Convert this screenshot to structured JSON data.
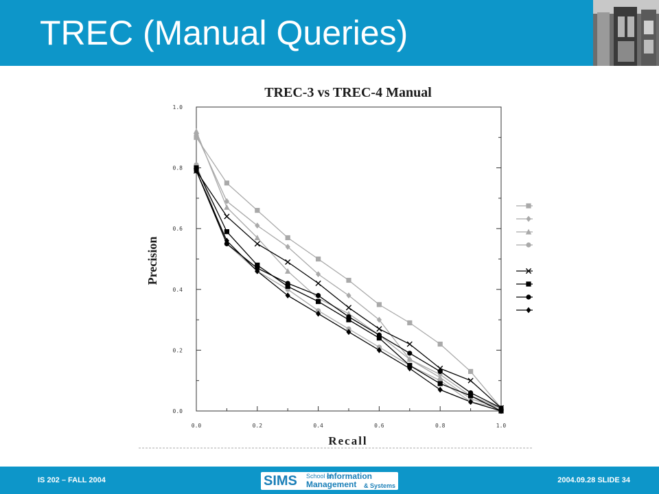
{
  "slide": {
    "title": "TREC (Manual Queries)",
    "footer_left": "IS 202 – FALL 2004",
    "footer_right": "2004.09.28  SLIDE 34",
    "logo": {
      "word": "SIMS",
      "line1_a": "School of",
      "line1_b": "Information",
      "line2_a": "Management",
      "line2_b": "& Systems"
    },
    "colors": {
      "header_bg": "#0d96c9",
      "footer_bg": "#0d96c9",
      "title_text": "#ffffff",
      "gray_series": "#a9a9a9",
      "black_series": "#000000"
    }
  },
  "chart_data": {
    "type": "line",
    "title": "TREC-3 vs TREC-4 Manual",
    "xlabel": "Recall",
    "ylabel": "Precision",
    "xlim": [
      0,
      1
    ],
    "ylim": [
      0,
      1
    ],
    "x": [
      0.0,
      0.1,
      0.2,
      0.3,
      0.4,
      0.5,
      0.6,
      0.7,
      0.8,
      0.9,
      1.0
    ],
    "x_tick_labels": [
      "0.0",
      "0.2",
      "0.4",
      "0.6",
      "0.8",
      "1.0"
    ],
    "y_tick_labels": [
      "0.0",
      "0.2",
      "0.4",
      "0.6",
      "0.8",
      "1.0"
    ],
    "legend_position": "right",
    "legend_labels_visible": false,
    "series": [
      {
        "marker": "square",
        "color": "#a9a9a9",
        "values": [
          0.9,
          0.75,
          0.66,
          0.57,
          0.5,
          0.43,
          0.35,
          0.29,
          0.22,
          0.13,
          0.01
        ]
      },
      {
        "marker": "diamond",
        "color": "#a9a9a9",
        "values": [
          0.91,
          0.69,
          0.61,
          0.54,
          0.45,
          0.38,
          0.3,
          0.17,
          0.12,
          0.05,
          0.01
        ]
      },
      {
        "marker": "triangle",
        "color": "#a9a9a9",
        "values": [
          0.92,
          0.67,
          0.57,
          0.46,
          0.37,
          0.32,
          0.25,
          0.17,
          0.11,
          0.04,
          0.01
        ]
      },
      {
        "marker": "circle",
        "color": "#a9a9a9",
        "values": [
          0.81,
          0.55,
          0.46,
          0.4,
          0.33,
          0.27,
          0.21,
          0.15,
          0.1,
          0.03,
          0.01
        ]
      },
      {
        "marker": "x",
        "color": "#000000",
        "values": [
          0.79,
          0.64,
          0.55,
          0.49,
          0.42,
          0.34,
          0.27,
          0.22,
          0.14,
          0.1,
          0.01
        ]
      },
      {
        "marker": "square",
        "color": "#000000",
        "values": [
          0.8,
          0.59,
          0.48,
          0.41,
          0.36,
          0.3,
          0.24,
          0.15,
          0.09,
          0.05,
          0.0
        ]
      },
      {
        "marker": "circle",
        "color": "#000000",
        "values": [
          0.79,
          0.55,
          0.47,
          0.42,
          0.38,
          0.31,
          0.25,
          0.19,
          0.13,
          0.06,
          0.01
        ]
      },
      {
        "marker": "diamond",
        "color": "#000000",
        "values": [
          0.79,
          0.56,
          0.46,
          0.38,
          0.32,
          0.26,
          0.2,
          0.14,
          0.07,
          0.03,
          0.0
        ]
      }
    ]
  }
}
